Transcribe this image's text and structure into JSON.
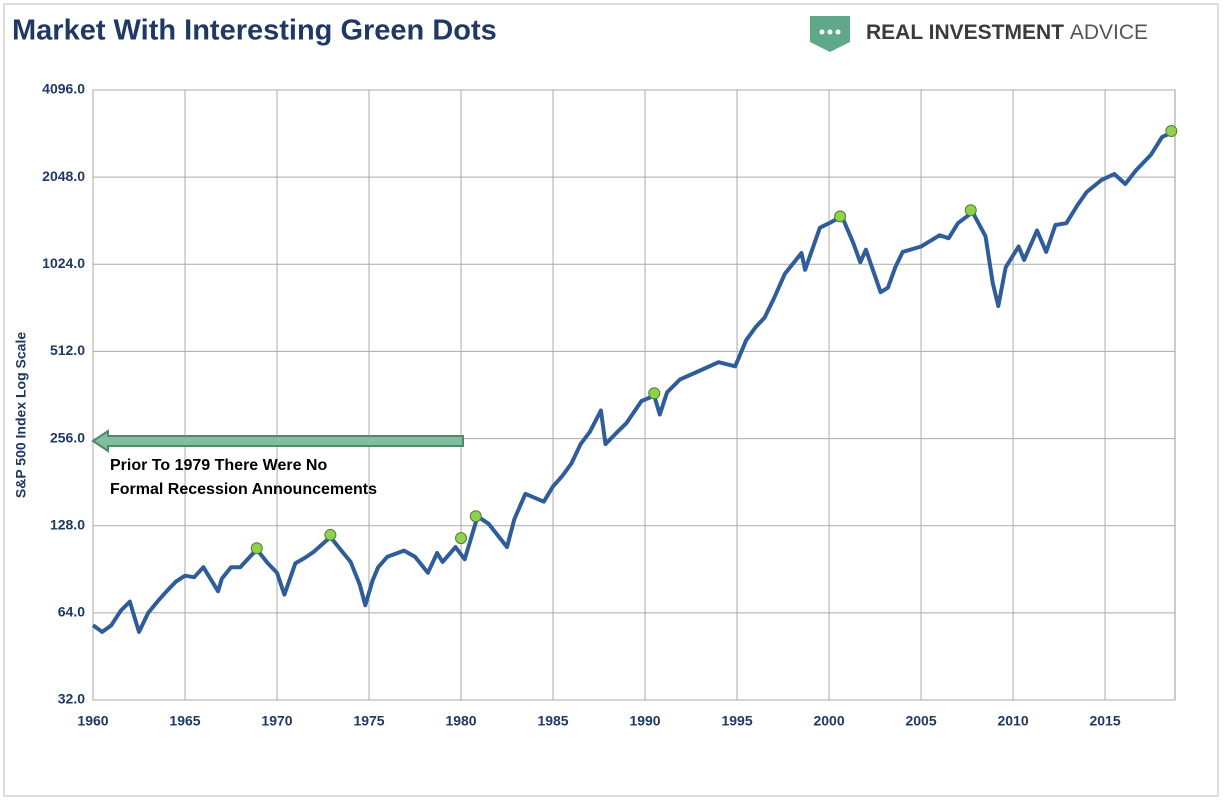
{
  "chart_data": {
    "type": "line",
    "title": "Market With Interesting Green Dots",
    "logo": [
      "REAL INVESTMENT",
      "ADVICE"
    ],
    "y_label": "S&P 500 Index Log Scale",
    "annotation": [
      "Prior To 1979 There Were No",
      "Formal Recession Announcements"
    ],
    "ylog": true,
    "grid": true,
    "xlim": [
      1960,
      2018.8
    ],
    "xticks": [
      1960,
      1965,
      1970,
      1975,
      1980,
      1985,
      1990,
      1995,
      2000,
      2005,
      2010,
      2015
    ],
    "ylim": [
      32,
      4096
    ],
    "yticks": [
      {
        "value": 32,
        "label": "32.0"
      },
      {
        "value": 64,
        "label": "64.0"
      },
      {
        "value": 128,
        "label": "128.0"
      },
      {
        "value": 256,
        "label": "256.0"
      },
      {
        "value": 512,
        "label": "512.0"
      },
      {
        "value": 1024,
        "label": "1024.0"
      },
      {
        "value": 2048,
        "label": "2048.0"
      },
      {
        "value": 4096,
        "label": "4096.0"
      }
    ],
    "x": [
      1960,
      1960.5,
      1961,
      1961.5,
      1962,
      1962.5,
      1963,
      1963.5,
      1964,
      1964.5,
      1965,
      1965.5,
      1966,
      1966.8,
      1967,
      1967.5,
      1968,
      1968.9,
      1969.5,
      1970,
      1970.4,
      1971,
      1971.5,
      1972,
      1972.9,
      1973.5,
      1974,
      1974.5,
      1974.8,
      1975.2,
      1975.5,
      1976,
      1976.9,
      1977.5,
      1978.2,
      1978.7,
      1979,
      1979.7,
      1980.2,
      1980.9,
      1981.5,
      1982.5,
      1982.9,
      1983.5,
      1984.5,
      1985,
      1985.5,
      1986,
      1986.5,
      1987,
      1987.6,
      1987.85,
      1988.5,
      1989,
      1989.8,
      1990.5,
      1990.8,
      1991.2,
      1991.9,
      1993,
      1994,
      1994.9,
      1995.5,
      1996,
      1996.5,
      1997,
      1997.6,
      1998.5,
      1998.7,
      1999.5,
      2000,
      2000.7,
      2001.3,
      2001.7,
      2002,
      2002.8,
      2003.2,
      2003.6,
      2004,
      2005,
      2006,
      2006.5,
      2007,
      2007.8,
      2008.5,
      2008.9,
      2009.2,
      2009.6,
      2010.3,
      2010.6,
      2011.3,
      2011.8,
      2012.3,
      2012.9,
      2013.5,
      2014,
      2014.8,
      2015.5,
      2016.1,
      2016.7,
      2017.5,
      2018.1,
      2018.7
    ],
    "series": [
      {
        "color": "#2e5d9a",
        "values": [
          58,
          55,
          58,
          65,
          70,
          55,
          64,
          70,
          76,
          82,
          86,
          85,
          92,
          76,
          84,
          92,
          92,
          106,
          95,
          88,
          74,
          95,
          99,
          104,
          117,
          105,
          96,
          80,
          68,
          83,
          92,
          100,
          105,
          100,
          88,
          103,
          96,
          108,
          98,
          138,
          130,
          108,
          135,
          165,
          155,
          175,
          190,
          210,
          245,
          270,
          320,
          245,
          270,
          290,
          345,
          360,
          310,
          370,
          410,
          440,
          470,
          455,
          560,
          620,
          670,
          780,
          950,
          1120,
          980,
          1370,
          1420,
          1500,
          1220,
          1040,
          1150,
          820,
          850,
          1000,
          1130,
          1180,
          1290,
          1260,
          1420,
          1550,
          1280,
          880,
          735,
          1000,
          1180,
          1060,
          1340,
          1130,
          1400,
          1420,
          1640,
          1820,
          2000,
          2100,
          1940,
          2170,
          2450,
          2820,
          2930
        ]
      }
    ],
    "markers": {
      "color": "#8fd14f",
      "x": [
        1968.9,
        1972.9,
        1980.0,
        1980.8,
        1990.5,
        2000.6,
        2007.7,
        2018.6
      ],
      "values": [
        107,
        119,
        116,
        138,
        367,
        1499,
        1574,
        2955
      ]
    }
  }
}
